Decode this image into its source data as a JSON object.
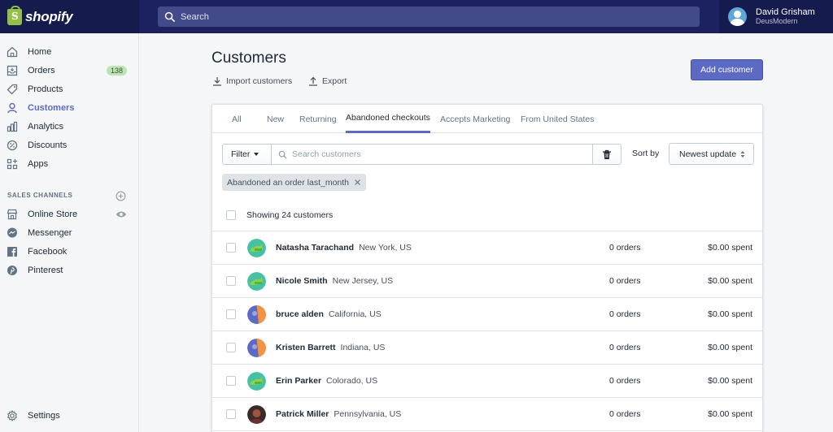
{
  "brand": {
    "logo_text": "shopify"
  },
  "topbar": {
    "search_placeholder": "Search",
    "user_name": "David Grisham",
    "store_name": "DeusModern"
  },
  "sidebar": {
    "items": [
      {
        "label": "Home",
        "icon": "home-icon"
      },
      {
        "label": "Orders",
        "icon": "orders-icon",
        "badge": "138"
      },
      {
        "label": "Products",
        "icon": "tag-icon"
      },
      {
        "label": "Customers",
        "icon": "person-icon",
        "active": true
      },
      {
        "label": "Analytics",
        "icon": "bar-chart-icon"
      },
      {
        "label": "Discounts",
        "icon": "discount-icon"
      },
      {
        "label": "Apps",
        "icon": "apps-icon"
      }
    ],
    "channels_heading": "SALES CHANNELS",
    "channels": [
      {
        "label": "Online Store",
        "icon": "store-icon"
      },
      {
        "label": "Messenger",
        "icon": "messenger-icon"
      },
      {
        "label": "Facebook",
        "icon": "facebook-icon"
      },
      {
        "label": "Pinterest",
        "icon": "pinterest-icon"
      }
    ],
    "settings_label": "Settings"
  },
  "page": {
    "title": "Customers",
    "import_label": "Import customers",
    "export_label": "Export",
    "add_button": "Add customer"
  },
  "tabs": [
    "All",
    "New",
    "Returning",
    "Abandoned checkouts",
    "Accepts Marketing",
    "From United States"
  ],
  "active_tab": "Abandoned checkouts",
  "filters": {
    "filter_button": "Filter",
    "search_placeholder": "Search customers",
    "sort_label": "Sort by",
    "sort_value": "Newest update",
    "applied_tag": "Abandoned an order last_month"
  },
  "list": {
    "showing": "Showing 24 customers",
    "customers": [
      {
        "name": "Natasha Tarachand",
        "location": "New York, US",
        "orders": "0 orders",
        "spent": "$0.00 spent",
        "avatar": "green"
      },
      {
        "name": "Nicole Smith",
        "location": "New Jersey, US",
        "orders": "0 orders",
        "spent": "$0.00 spent",
        "avatar": "green"
      },
      {
        "name": "bruce alden",
        "location": "California, US",
        "orders": "0 orders",
        "spent": "$0.00 spent",
        "avatar": "blue-orange"
      },
      {
        "name": "Kristen Barrett",
        "location": "Indiana, US",
        "orders": "0 orders",
        "spent": "$0.00 spent",
        "avatar": "blue-orange"
      },
      {
        "name": "Erin Parker",
        "location": "Colorado, US",
        "orders": "0 orders",
        "spent": "$0.00 spent",
        "avatar": "green"
      },
      {
        "name": "Patrick Miller",
        "location": "Pennsylvania, US",
        "orders": "0 orders",
        "spent": "$0.00 spent",
        "avatar": "dark"
      }
    ]
  },
  "colors": {
    "topbar": "#1c2260",
    "accent": "#5c6ac4",
    "badge": "#bbe5b3",
    "logo_green": "#95bf47"
  }
}
